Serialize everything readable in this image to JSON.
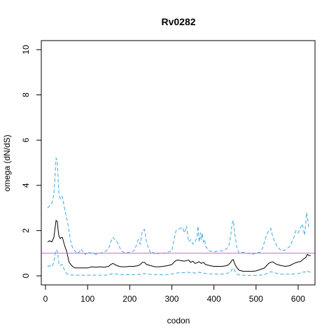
{
  "chart_data": {
    "type": "line",
    "title": "Rv0282",
    "xlabel": "codon",
    "ylabel": "omega (dN/dS)",
    "xlim": [
      -10,
      640
    ],
    "ylim": [
      -0.4,
      10.4
    ],
    "xticks": [
      0,
      100,
      200,
      300,
      400,
      500,
      600
    ],
    "yticks": [
      0,
      2,
      4,
      6,
      8,
      10
    ],
    "reference_line": {
      "y": 1,
      "color": "#cc66cc"
    },
    "grid": false,
    "legend": "none",
    "series": [
      {
        "style": "dashed",
        "color": "#3fa7e0",
        "x": [
          5,
          10,
          15,
          20,
          22,
          25,
          28,
          30,
          32,
          35,
          38,
          40,
          43,
          46,
          50,
          53,
          56,
          60,
          65,
          70,
          75,
          80,
          85,
          90,
          95,
          100,
          110,
          120,
          130,
          140,
          150,
          155,
          160,
          165,
          170,
          175,
          180,
          190,
          200,
          210,
          215,
          220,
          225,
          230,
          235,
          240,
          245,
          250,
          255,
          260,
          270,
          280,
          290,
          300,
          305,
          310,
          315,
          320,
          325,
          330,
          335,
          340,
          345,
          350,
          355,
          360,
          362,
          365,
          368,
          370,
          372,
          375,
          378,
          380,
          385,
          390,
          400,
          410,
          420,
          430,
          435,
          440,
          443,
          446,
          450,
          455,
          460,
          470,
          480,
          490,
          500,
          510,
          515,
          520,
          525,
          530,
          535,
          540,
          545,
          550,
          555,
          560,
          570,
          580,
          590,
          595,
          600,
          605,
          610,
          615,
          618,
          620,
          622,
          625,
          630
        ],
        "y": [
          3.0,
          3.1,
          3.2,
          3.6,
          4.2,
          5.2,
          5.1,
          4.2,
          3.6,
          3.4,
          3.5,
          3.5,
          3.2,
          2.9,
          2.6,
          2.3,
          2.0,
          1.5,
          1.2,
          1.1,
          1.0,
          1.05,
          1.2,
          1.0,
          0.95,
          1.05,
          1.0,
          0.95,
          1.0,
          1.05,
          1.2,
          1.5,
          1.7,
          1.6,
          1.5,
          1.3,
          1.1,
          1.0,
          1.05,
          1.1,
          1.3,
          1.6,
          1.4,
          2.0,
          2.05,
          1.5,
          1.2,
          1.0,
          1.05,
          0.95,
          1.0,
          1.0,
          1.05,
          1.1,
          1.6,
          2.0,
          2.05,
          2.1,
          2.15,
          1.9,
          2.2,
          1.5,
          1.6,
          1.4,
          1.5,
          1.7,
          2.2,
          1.5,
          1.9,
          1.6,
          1.9,
          1.5,
          1.6,
          1.3,
          1.2,
          1.1,
          1.05,
          1.1,
          1.1,
          1.2,
          1.3,
          1.8,
          2.3,
          2.45,
          1.8,
          1.2,
          1.0,
          1.05,
          1.0,
          0.95,
          1.0,
          1.05,
          1.2,
          1.5,
          1.8,
          2.0,
          2.1,
          1.7,
          1.5,
          1.3,
          1.2,
          1.1,
          1.15,
          1.3,
          1.7,
          2.0,
          1.9,
          2.1,
          2.3,
          1.8,
          2.3,
          2.8,
          2.6,
          2.15,
          2.15
        ]
      },
      {
        "style": "solid",
        "color": "#000000",
        "x": [
          5,
          10,
          15,
          20,
          22,
          25,
          28,
          30,
          32,
          35,
          38,
          40,
          43,
          46,
          50,
          53,
          56,
          60,
          65,
          70,
          80,
          90,
          100,
          110,
          120,
          130,
          140,
          150,
          155,
          160,
          165,
          170,
          175,
          180,
          190,
          200,
          210,
          220,
          225,
          230,
          235,
          240,
          250,
          260,
          270,
          280,
          290,
          300,
          305,
          310,
          315,
          320,
          330,
          340,
          345,
          350,
          355,
          360,
          365,
          370,
          375,
          380,
          385,
          390,
          400,
          410,
          420,
          430,
          435,
          440,
          443,
          446,
          450,
          455,
          460,
          470,
          480,
          490,
          500,
          510,
          520,
          525,
          530,
          535,
          540,
          545,
          550,
          560,
          570,
          580,
          590,
          600,
          605,
          610,
          615,
          618,
          620,
          622,
          625,
          630
        ],
        "y": [
          1.5,
          1.55,
          1.5,
          1.7,
          2.0,
          2.45,
          2.4,
          2.0,
          1.75,
          1.65,
          1.7,
          1.7,
          1.5,
          1.3,
          1.1,
          0.85,
          0.6,
          0.5,
          0.4,
          0.35,
          0.35,
          0.35,
          0.35,
          0.4,
          0.38,
          0.4,
          0.38,
          0.42,
          0.5,
          0.55,
          0.5,
          0.45,
          0.42,
          0.4,
          0.4,
          0.42,
          0.42,
          0.45,
          0.5,
          0.6,
          0.6,
          0.5,
          0.45,
          0.4,
          0.4,
          0.42,
          0.45,
          0.5,
          0.6,
          0.68,
          0.7,
          0.68,
          0.65,
          0.7,
          0.6,
          0.65,
          0.55,
          0.58,
          0.62,
          0.55,
          0.6,
          0.5,
          0.48,
          0.45,
          0.42,
          0.42,
          0.42,
          0.45,
          0.5,
          0.6,
          0.7,
          0.72,
          0.5,
          0.35,
          0.25,
          0.2,
          0.2,
          0.2,
          0.22,
          0.28,
          0.35,
          0.45,
          0.55,
          0.6,
          0.62,
          0.55,
          0.5,
          0.45,
          0.42,
          0.45,
          0.55,
          0.62,
          0.62,
          0.7,
          0.78,
          0.8,
          0.9,
          0.95,
          0.9,
          0.9
        ]
      },
      {
        "style": "dashed",
        "color": "#3fa7e0",
        "x": [
          5,
          10,
          15,
          20,
          22,
          25,
          28,
          30,
          32,
          35,
          38,
          40,
          43,
          46,
          50,
          55,
          60,
          70,
          80,
          100,
          120,
          140,
          150,
          155,
          160,
          165,
          170,
          180,
          200,
          220,
          230,
          235,
          240,
          250,
          270,
          290,
          300,
          310,
          320,
          330,
          340,
          345,
          350,
          355,
          360,
          365,
          370,
          380,
          400,
          420,
          430,
          440,
          443,
          446,
          450,
          455,
          460,
          480,
          500,
          520,
          525,
          530,
          535,
          540,
          545,
          550,
          560,
          580,
          600,
          610,
          615,
          620,
          622,
          625,
          630
        ],
        "y": [
          0.4,
          0.45,
          0.4,
          0.6,
          0.9,
          1.15,
          1.1,
          0.8,
          0.5,
          0.45,
          0.5,
          0.5,
          0.35,
          0.2,
          0.1,
          0.06,
          0.04,
          0.03,
          0.03,
          0.03,
          0.03,
          0.03,
          0.04,
          0.08,
          0.1,
          0.09,
          0.07,
          0.05,
          0.05,
          0.06,
          0.09,
          0.1,
          0.08,
          0.06,
          0.05,
          0.06,
          0.08,
          0.12,
          0.15,
          0.14,
          0.16,
          0.13,
          0.15,
          0.12,
          0.14,
          0.16,
          0.13,
          0.1,
          0.08,
          0.08,
          0.1,
          0.18,
          0.3,
          0.35,
          0.2,
          0.08,
          0.04,
          0.02,
          0.02,
          0.05,
          0.1,
          0.15,
          0.18,
          0.16,
          0.14,
          0.1,
          0.08,
          0.07,
          0.1,
          0.15,
          0.18,
          0.14,
          0.2,
          0.18,
          0.16
        ]
      }
    ]
  }
}
